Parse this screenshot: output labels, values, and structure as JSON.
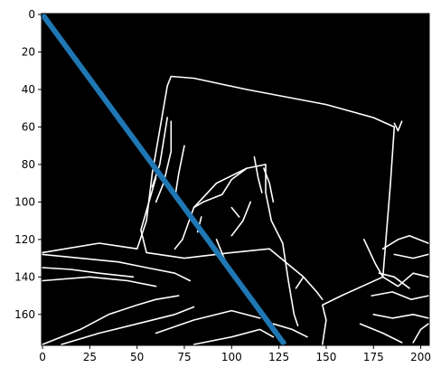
{
  "chart_data": {
    "type": "image",
    "title": "",
    "xlabel": "",
    "ylabel": "",
    "image_size": [
      205,
      177
    ],
    "xlim": [
      0,
      204
    ],
    "ylim": [
      176,
      0
    ],
    "x_ticks": [
      0,
      25,
      50,
      75,
      100,
      125,
      150,
      175,
      200
    ],
    "y_ticks": [
      0,
      20,
      40,
      60,
      80,
      100,
      120,
      140,
      160
    ],
    "x_tick_labels": [
      "0",
      "25",
      "50",
      "75",
      "100",
      "125",
      "150",
      "175",
      "200"
    ],
    "y_tick_labels": [
      "0",
      "20",
      "40",
      "60",
      "80",
      "100",
      "120",
      "140",
      "160"
    ],
    "background_color": "#000000",
    "edge_color": "#ffffff",
    "series": [
      {
        "type": "line",
        "color": "#1f77b4",
        "x": [
          0,
          128
        ],
        "y": [
          0,
          176
        ]
      }
    ],
    "edge_polylines": [
      [
        [
          58,
          85
        ],
        [
          66,
          38
        ],
        [
          68,
          33
        ],
        [
          80,
          34
        ],
        [
          108,
          40
        ],
        [
          150,
          48
        ],
        [
          175,
          55
        ],
        [
          186,
          60
        ],
        [
          184,
          90
        ],
        [
          180,
          140
        ],
        [
          158,
          150
        ],
        [
          148,
          155
        ],
        [
          150,
          163
        ],
        [
          148,
          176
        ]
      ],
      [
        [
          58,
          85
        ],
        [
          55,
          110
        ],
        [
          50,
          125
        ],
        [
          30,
          122
        ],
        [
          12,
          125
        ],
        [
          0,
          127
        ]
      ],
      [
        [
          60,
          87
        ],
        [
          52,
          115
        ],
        [
          55,
          127
        ],
        [
          75,
          130
        ],
        [
          100,
          127
        ],
        [
          120,
          125
        ],
        [
          138,
          140
        ],
        [
          145,
          148
        ],
        [
          148,
          152
        ]
      ],
      [
        [
          70,
          125
        ],
        [
          74,
          120
        ],
        [
          80,
          103
        ],
        [
          92,
          90
        ],
        [
          108,
          82
        ],
        [
          118,
          80
        ],
        [
          118,
          95
        ],
        [
          121,
          110
        ],
        [
          127,
          122
        ],
        [
          130,
          142
        ],
        [
          133,
          160
        ],
        [
          135,
          166
        ]
      ],
      [
        [
          80,
          103
        ],
        [
          85,
          100
        ],
        [
          95,
          96
        ],
        [
          100,
          88
        ],
        [
          108,
          82
        ]
      ],
      [
        [
          68,
          57
        ],
        [
          68,
          73
        ],
        [
          64,
          90
        ],
        [
          60,
          100
        ]
      ],
      [
        [
          66,
          55
        ],
        [
          62,
          80
        ],
        [
          58,
          92
        ]
      ],
      [
        [
          75,
          70
        ],
        [
          72,
          85
        ],
        [
          70,
          98
        ]
      ],
      [
        [
          117,
          82
        ],
        [
          120,
          90
        ],
        [
          122,
          100
        ]
      ],
      [
        [
          112,
          76
        ],
        [
          114,
          87
        ],
        [
          116,
          95
        ]
      ],
      [
        [
          110,
          100
        ],
        [
          106,
          110
        ],
        [
          100,
          118
        ]
      ],
      [
        [
          0,
          128
        ],
        [
          20,
          130
        ],
        [
          40,
          132
        ],
        [
          55,
          135
        ],
        [
          70,
          138
        ],
        [
          78,
          142
        ]
      ],
      [
        [
          0,
          135
        ],
        [
          15,
          136
        ],
        [
          30,
          138
        ],
        [
          48,
          140
        ]
      ],
      [
        [
          0,
          142
        ],
        [
          25,
          140
        ],
        [
          45,
          142
        ],
        [
          60,
          145
        ]
      ],
      [
        [
          0,
          176
        ],
        [
          20,
          168
        ],
        [
          35,
          160
        ],
        [
          50,
          155
        ],
        [
          60,
          152
        ],
        [
          72,
          150
        ]
      ],
      [
        [
          10,
          176
        ],
        [
          30,
          170
        ],
        [
          50,
          165
        ],
        [
          70,
          160
        ],
        [
          80,
          156
        ]
      ],
      [
        [
          60,
          170
        ],
        [
          80,
          163
        ],
        [
          100,
          158
        ],
        [
          115,
          162
        ]
      ],
      [
        [
          80,
          176
        ],
        [
          100,
          172
        ],
        [
          115,
          168
        ],
        [
          122,
          172
        ]
      ],
      [
        [
          122,
          165
        ],
        [
          132,
          168
        ],
        [
          140,
          172
        ]
      ],
      [
        [
          170,
          120
        ],
        [
          176,
          133
        ],
        [
          180,
          140
        ],
        [
          188,
          145
        ],
        [
          196,
          138
        ],
        [
          204,
          140
        ]
      ],
      [
        [
          174,
          150
        ],
        [
          185,
          148
        ],
        [
          195,
          152
        ],
        [
          204,
          150
        ]
      ],
      [
        [
          175,
          160
        ],
        [
          185,
          162
        ],
        [
          196,
          160
        ],
        [
          204,
          162
        ]
      ],
      [
        [
          180,
          125
        ],
        [
          188,
          120
        ],
        [
          194,
          118
        ],
        [
          204,
          122
        ]
      ],
      [
        [
          186,
          128
        ],
        [
          196,
          130
        ],
        [
          204,
          128
        ]
      ],
      [
        [
          178,
          138
        ],
        [
          186,
          140
        ],
        [
          194,
          146
        ]
      ],
      [
        [
          168,
          165
        ],
        [
          180,
          170
        ],
        [
          190,
          175
        ]
      ],
      [
        [
          196,
          175
        ],
        [
          200,
          168
        ],
        [
          204,
          165
        ]
      ],
      [
        [
          190,
          57
        ],
        [
          188,
          62
        ],
        [
          186,
          58
        ]
      ],
      [
        [
          92,
          120
        ],
        [
          96,
          130
        ],
        [
          100,
          137
        ]
      ],
      [
        [
          134,
          146
        ],
        [
          138,
          140
        ]
      ],
      [
        [
          100,
          103
        ],
        [
          104,
          108
        ]
      ],
      [
        [
          84,
          108
        ],
        [
          82,
          116
        ]
      ]
    ]
  }
}
